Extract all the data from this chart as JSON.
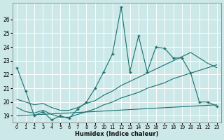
{
  "xlabel": "Humidex (Indice chaleur)",
  "background_color": "#cce8e8",
  "grid_color": "#d4e8e8",
  "line_color": "#1a7070",
  "xlim": [
    -0.5,
    23.5
  ],
  "ylim": [
    18.5,
    27.2
  ],
  "yticks": [
    19,
    20,
    21,
    22,
    23,
    24,
    25,
    26
  ],
  "xticks": [
    0,
    1,
    2,
    3,
    4,
    5,
    6,
    7,
    8,
    9,
    10,
    11,
    12,
    13,
    14,
    15,
    16,
    17,
    18,
    19,
    20,
    21,
    22,
    23
  ],
  "line1_x": [
    0,
    1,
    2,
    3,
    4,
    5,
    6,
    7,
    8,
    9,
    10,
    11,
    12,
    13,
    14,
    15,
    16,
    17,
    18,
    19,
    20,
    21,
    22,
    23
  ],
  "line1_y": [
    22.5,
    20.8,
    19.0,
    19.3,
    18.7,
    19.0,
    18.8,
    19.5,
    20.0,
    21.0,
    22.2,
    23.5,
    26.9,
    22.2,
    24.8,
    22.2,
    24.0,
    23.9,
    23.2,
    23.2,
    22.1,
    20.0,
    20.0,
    19.7
  ],
  "line2_x": [
    0,
    1,
    2,
    3,
    4,
    5,
    6,
    7,
    8,
    9,
    10,
    11,
    12,
    13,
    14,
    15,
    16,
    17,
    18,
    19,
    20,
    21,
    22,
    23
  ],
  "line2_y": [
    19.6,
    19.3,
    19.2,
    19.4,
    19.1,
    18.9,
    18.9,
    19.1,
    19.3,
    19.5,
    19.8,
    20.0,
    20.3,
    20.5,
    20.7,
    21.0,
    21.2,
    21.4,
    21.7,
    21.9,
    22.1,
    22.3,
    22.5,
    22.7
  ],
  "line3_x": [
    0,
    1,
    2,
    3,
    4,
    5,
    6,
    7,
    8,
    9,
    10,
    11,
    12,
    13,
    14,
    15,
    16,
    17,
    18,
    19,
    20,
    21,
    22,
    23
  ],
  "line3_y": [
    20.2,
    20.0,
    19.8,
    19.9,
    19.6,
    19.4,
    19.4,
    19.6,
    19.9,
    20.1,
    20.5,
    20.8,
    21.2,
    21.5,
    21.8,
    22.1,
    22.4,
    22.7,
    23.0,
    23.3,
    23.6,
    23.2,
    22.8,
    22.5
  ],
  "line4_x": [
    0,
    23
  ],
  "line4_y": [
    19.0,
    19.8
  ]
}
